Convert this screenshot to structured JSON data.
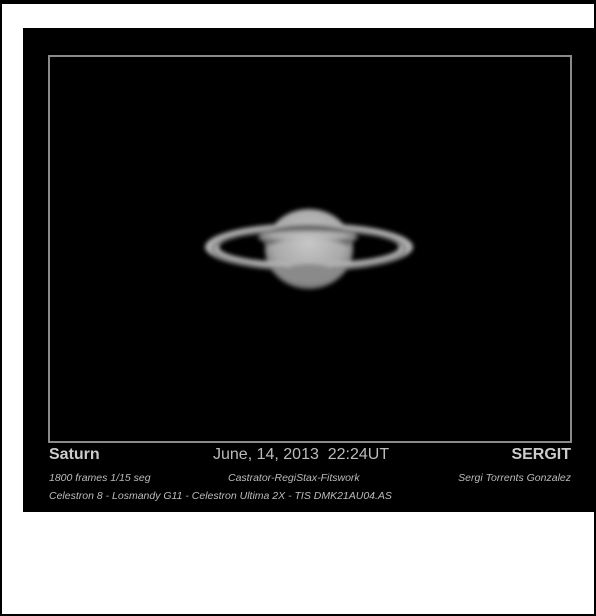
{
  "photo": {
    "object": "Saturn",
    "date": "June, 14, 2013  22:24UT",
    "author_tag": "SERGIT",
    "frames": "1800 frames 1/15 seg",
    "software": "Castrator-RegiStax-Fitswork",
    "author": "Sergi Torrents Gonzalez",
    "equipment": "Celestron 8 - Losmandy G11 - Celestron Ultima 2X - TIS DMK21AU04.AS"
  }
}
